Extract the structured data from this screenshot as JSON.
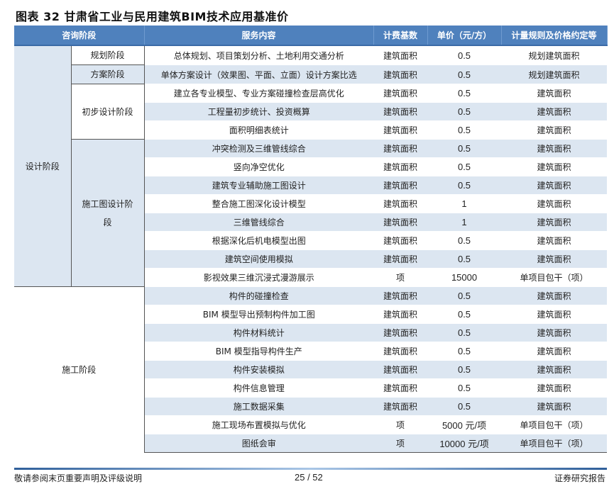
{
  "title": "图表 32 甘肃省工业与民用建筑BIM技术应用基准价",
  "headers": [
    "咨询阶段",
    "服务内容",
    "计费基数",
    "单价（元/方）",
    "计量规则及价格约定等"
  ],
  "phases": {
    "design": "设计阶段",
    "construction": "施工阶段"
  },
  "subphases": [
    "规划阶段",
    "方案阶段",
    "初步设计阶段",
    "施工图设计阶段"
  ],
  "rows": [
    {
      "service": "总体规划、项目策划分析、土地利用交通分析",
      "basis": "建筑面积",
      "price": "0.5",
      "rule": "规划建筑面积"
    },
    {
      "service": "单体方案设计（效果图、平面、立面）设计方案比选",
      "basis": "建筑面积",
      "price": "0.5",
      "rule": "规划建筑面积"
    },
    {
      "service": "建立各专业模型、专业方案碰撞检查层高优化",
      "basis": "建筑面积",
      "price": "0.5",
      "rule": "建筑面积"
    },
    {
      "service": "工程量初步统计、投资概算",
      "basis": "建筑面积",
      "price": "0.5",
      "rule": "建筑面积"
    },
    {
      "service": "面积明细表统计",
      "basis": "建筑面积",
      "price": "0.5",
      "rule": "建筑面积"
    },
    {
      "service": "冲突检测及三维管线综合",
      "basis": "建筑面积",
      "price": "0.5",
      "rule": "建筑面积"
    },
    {
      "service": "竖向净空优化",
      "basis": "建筑面积",
      "price": "0.5",
      "rule": "建筑面积"
    },
    {
      "service": "建筑专业辅助施工图设计",
      "basis": "建筑面积",
      "price": "0.5",
      "rule": "建筑面积"
    },
    {
      "service": "整合施工图深化设计模型",
      "basis": "建筑面积",
      "price": "1",
      "rule": "建筑面积"
    },
    {
      "service": "三维管线综合",
      "basis": "建筑面积",
      "price": "1",
      "rule": "建筑面积"
    },
    {
      "service": "根据深化后机电模型出图",
      "basis": "建筑面积",
      "price": "0.5",
      "rule": "建筑面积"
    },
    {
      "service": "建筑空间使用模拟",
      "basis": "建筑面积",
      "price": "0.5",
      "rule": "建筑面积"
    },
    {
      "service": "影视效果三维沉浸式漫游展示",
      "basis": "项",
      "price": "15000",
      "rule": "单项目包干（项）"
    },
    {
      "service": "构件的碰撞检查",
      "basis": "建筑面积",
      "price": "0.5",
      "rule": "建筑面积"
    },
    {
      "service": "BIM 模型导出预制构件加工图",
      "basis": "建筑面积",
      "price": "0.5",
      "rule": "建筑面积"
    },
    {
      "service": "构件材料统计",
      "basis": "建筑面积",
      "price": "0.5",
      "rule": "建筑面积"
    },
    {
      "service": "BIM 模型指导构件生产",
      "basis": "建筑面积",
      "price": "0.5",
      "rule": "建筑面积"
    },
    {
      "service": "构件安装模拟",
      "basis": "建筑面积",
      "price": "0.5",
      "rule": "建筑面积"
    },
    {
      "service": "构件信息管理",
      "basis": "建筑面积",
      "price": "0.5",
      "rule": "建筑面积"
    },
    {
      "service": "施工数据采集",
      "basis": "建筑面积",
      "price": "0.5",
      "rule": "建筑面积"
    },
    {
      "service": "施工现场布置模拟与优化",
      "basis": "项",
      "price": "5000 元/项",
      "rule": "单项目包干（项）"
    },
    {
      "service": "图纸会审",
      "basis": "项",
      "price": "10000 元/项",
      "rule": "单项目包干（项）"
    }
  ],
  "footer": {
    "disclaimer": "敬请参阅末页重要声明及评级说明",
    "page": "25 / 52",
    "report": "证券研究报告"
  },
  "colors": {
    "header": "#4f81bd",
    "shade": "#dce6f1"
  }
}
